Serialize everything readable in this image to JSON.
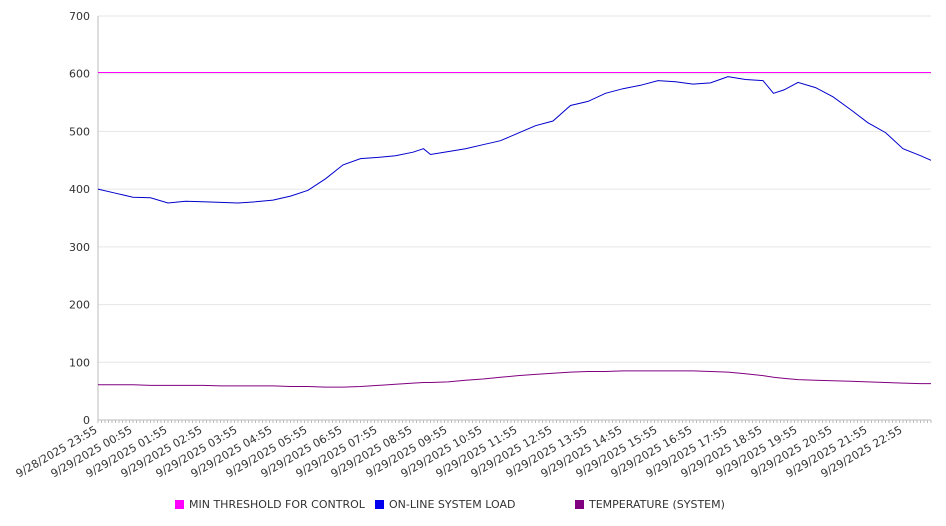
{
  "chart_data": {
    "type": "line",
    "title": "",
    "xlabel": "",
    "ylabel": "",
    "ylim": [
      0,
      700
    ],
    "yticks": [
      0,
      100,
      200,
      300,
      400,
      500,
      600,
      700
    ],
    "grid": true,
    "legend_position": "bottom",
    "x_tick_labels": [
      "9/28/2025 23:55",
      "9/29/2025 00:55",
      "9/29/2025 01:55",
      "9/29/2025 02:55",
      "9/29/2025 03:55",
      "9/29/2025 04:55",
      "9/29/2025 05:55",
      "9/29/2025 06:55",
      "9/29/2025 07:55",
      "9/29/2025 08:55",
      "9/29/2025 09:55",
      "9/29/2025 10:55",
      "9/29/2025 11:55",
      "9/29/2025 12:55",
      "9/29/2025 13:55",
      "9/29/2025 14:55",
      "9/29/2025 15:55",
      "9/29/2025 16:55",
      "9/29/2025 17:55",
      "9/29/2025 18:55",
      "9/29/2025 19:55",
      "9/29/2025 20:55",
      "9/29/2025 21:55",
      "9/29/2025 22:55"
    ],
    "x_hours": [
      0,
      0.5,
      1,
      1.5,
      2,
      2.5,
      3,
      3.5,
      4,
      4.5,
      5,
      5.5,
      6,
      6.5,
      7,
      7.5,
      8,
      8.5,
      9,
      9.3,
      9.5,
      10,
      10.5,
      11,
      11.5,
      12,
      12.5,
      13,
      13.5,
      14,
      14.5,
      15,
      15.5,
      16,
      16.5,
      17,
      17.5,
      18,
      18.5,
      19,
      19.3,
      19.6,
      20,
      20.5,
      21,
      21.5,
      22,
      22.5,
      23,
      23.5,
      23.8
    ],
    "series": [
      {
        "name": "MIN THRESHOLD FOR CONTROL",
        "color": "#ff00ff",
        "constant": 602
      },
      {
        "name": "ON-LINE SYSTEM LOAD",
        "color": "#0000cc",
        "values": [
          400,
          393,
          386,
          385,
          376,
          379,
          378,
          377,
          376,
          378,
          381,
          388,
          398,
          418,
          442,
          453,
          455,
          458,
          464,
          470,
          460,
          465,
          470,
          477,
          484,
          497,
          510,
          518,
          545,
          552,
          566,
          574,
          580,
          588,
          586,
          582,
          584,
          595,
          590,
          588,
          566,
          572,
          585,
          576,
          560,
          538,
          515,
          498,
          470,
          458,
          450
        ]
      },
      {
        "name": "TEMPERATURE (SYSTEM)",
        "color": "#800080",
        "values": [
          61,
          61,
          61,
          60,
          60,
          60,
          60,
          59,
          59,
          59,
          59,
          58,
          58,
          57,
          57,
          58,
          60,
          62,
          64,
          65,
          65,
          66,
          69,
          71,
          74,
          77,
          79,
          81,
          83,
          84,
          84,
          85,
          85,
          85,
          85,
          85,
          84,
          83,
          80,
          77,
          74,
          72,
          70,
          69,
          68,
          67,
          66,
          65,
          64,
          63,
          63
        ]
      }
    ]
  }
}
